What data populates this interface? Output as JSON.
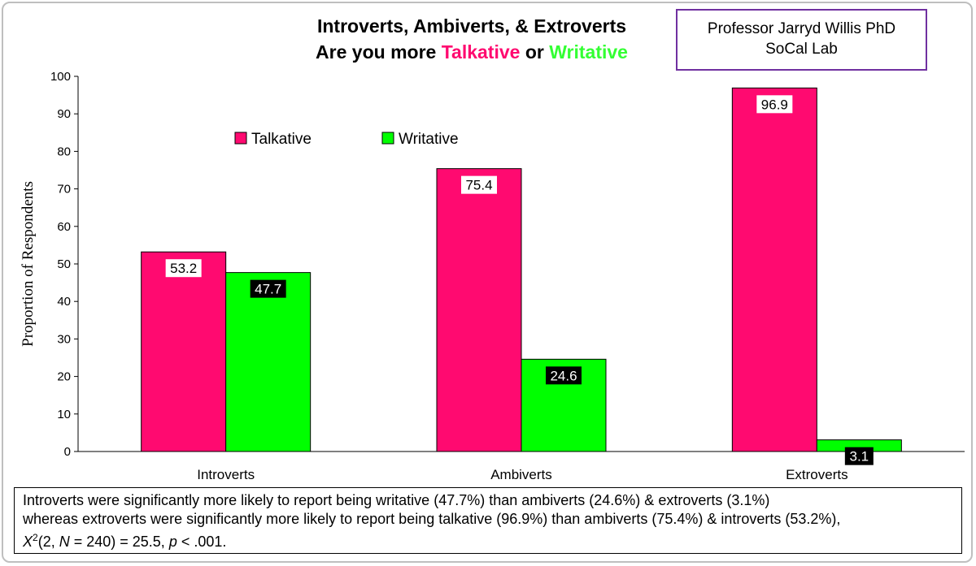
{
  "title": {
    "line1": "Introverts, Ambiverts, & Extroverts",
    "line2_prefix": "Are you more ",
    "line2_talk": "Talkative",
    "line2_mid": " or ",
    "line2_writ": "Writative"
  },
  "credit": {
    "name": "Professor Jarryd Willis PhD",
    "lab": "SoCal Lab"
  },
  "footnote": {
    "line1": "Introverts were significantly more likely to report being writative (47.7%) than ambiverts (24.6%) & extroverts (3.1%)",
    "line2": "whereas extroverts were significantly more likely to report being talkative (96.9%) than ambiverts (75.4%) & introverts (53.2%),",
    "line3_a": "X",
    "line3_sup": "2",
    "line3_b": "(2, ",
    "line3_n": "N",
    "line3_c": " = 240) = 25.5, ",
    "line3_p": "p",
    "line3_d": " < .001."
  },
  "chart_data": {
    "type": "bar",
    "title": "Introverts, Ambiverts, & Extroverts / Are you more Talkative or Writative",
    "xlabel": "",
    "ylabel": "Proportion of Respondents",
    "ylim": [
      0,
      100
    ],
    "yticks": [
      0,
      10,
      20,
      30,
      40,
      50,
      60,
      70,
      80,
      90,
      100
    ],
    "categories": [
      "Introverts",
      "Ambiverts",
      "Extroverts"
    ],
    "series": [
      {
        "name": "Talkative",
        "color": "#ff0a70",
        "values": [
          53.2,
          75.4,
          96.9
        ],
        "label_style": "white"
      },
      {
        "name": "Writative",
        "color": "#00ff00",
        "values": [
          47.7,
          24.6,
          3.1
        ],
        "label_style": "black"
      }
    ],
    "legend": "top-left",
    "grid": false
  }
}
